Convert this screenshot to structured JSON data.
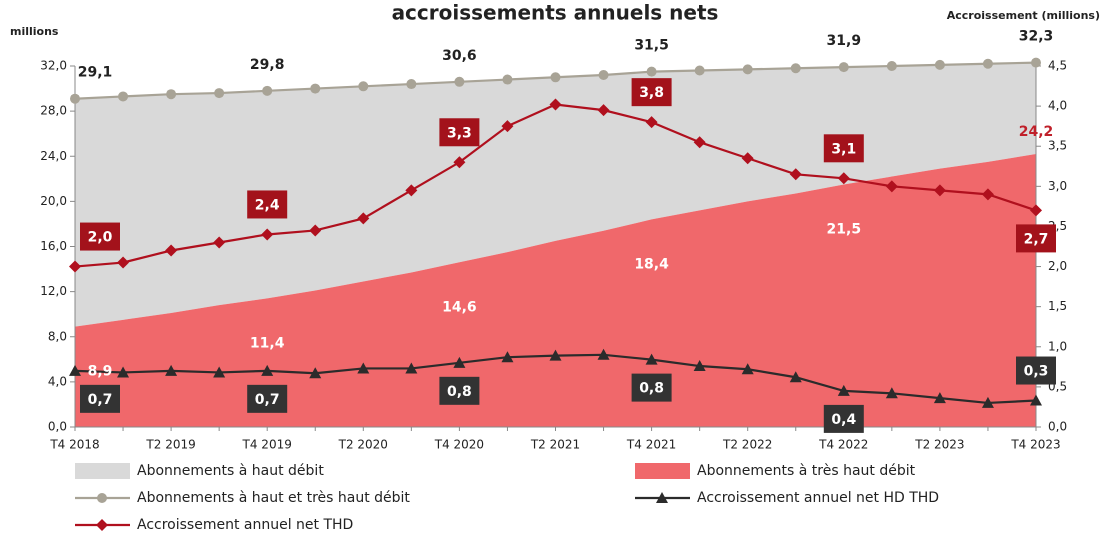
{
  "chart_data": {
    "type": "area-line",
    "title": "accroissements annuels nets",
    "y_label": "millions",
    "y2_label": "Accroissement (millions)",
    "categories": [
      "T4 2018",
      null,
      "T2 2019",
      null,
      "T4 2019",
      null,
      "T2 2020",
      null,
      "T4 2020",
      null,
      "T2 2021",
      null,
      "T4 2021",
      null,
      "T2 2022",
      null,
      "T4 2022",
      null,
      "T2 2023",
      null,
      "T4 2023"
    ],
    "ylim": [
      0,
      32
    ],
    "yticks": [
      {
        "value": 0,
        "label": "0,0"
      },
      {
        "value": 4,
        "label": "4,0"
      },
      {
        "value": 8,
        "label": "8,0"
      },
      {
        "value": 12,
        "label": "12,0"
      },
      {
        "value": 16,
        "label": "16,0"
      },
      {
        "value": 20,
        "label": "20,0"
      },
      {
        "value": 24,
        "label": "24,0"
      },
      {
        "value": 28,
        "label": "28,0"
      },
      {
        "value": 32,
        "label": "32,0"
      }
    ],
    "y2lim": [
      0,
      4.5
    ],
    "y2ticks": [
      {
        "value": 0,
        "label": "0,0"
      },
      {
        "value": 0.5,
        "label": "0,5"
      },
      {
        "value": 1,
        "label": "1,0"
      },
      {
        "value": 1.5,
        "label": "1,5"
      },
      {
        "value": 2,
        "label": "2,0"
      },
      {
        "value": 2.5,
        "label": "2,5"
      },
      {
        "value": 3,
        "label": "3,0"
      },
      {
        "value": 3.5,
        "label": "3,5"
      },
      {
        "value": 4,
        "label": "4,0"
      },
      {
        "value": 4.5,
        "label": "4,5"
      }
    ],
    "series": [
      {
        "name": "Abonnements à très haut débit",
        "kind": "area",
        "stacked": true,
        "color": "#f0686b",
        "values": [
          8.9,
          9.5,
          10.1,
          10.8,
          11.4,
          12.1,
          12.9,
          13.7,
          14.6,
          15.5,
          16.5,
          17.4,
          18.4,
          19.2,
          20.0,
          20.7,
          21.5,
          22.2,
          22.9,
          23.5,
          24.2
        ],
        "value_labels": [
          "8,9",
          null,
          null,
          null,
          "11,4",
          null,
          null,
          null,
          "14,6",
          null,
          null,
          null,
          "18,4",
          null,
          null,
          null,
          "21,5",
          null,
          null,
          null,
          "24,2"
        ]
      },
      {
        "name": "Abonnements à haut débit",
        "kind": "area",
        "stacked": true,
        "color": "#d9d9d9",
        "values": [
          20.2,
          19.8,
          19.4,
          18.8,
          18.4,
          17.9,
          17.3,
          16.7,
          16.0,
          15.3,
          14.5,
          13.8,
          13.1,
          12.4,
          11.7,
          11.1,
          10.4,
          9.8,
          9.2,
          8.7,
          8.1
        ]
      },
      {
        "name": "Abonnements à haut et très haut débit",
        "kind": "line",
        "marker": "circle",
        "color": "#a8a396",
        "values": [
          29.1,
          29.3,
          29.5,
          29.6,
          29.8,
          30.0,
          30.2,
          30.4,
          30.6,
          30.8,
          31.0,
          31.2,
          31.5,
          31.6,
          31.7,
          31.8,
          31.9,
          32.0,
          32.1,
          32.2,
          32.3
        ],
        "value_labels": [
          "29,1",
          null,
          null,
          null,
          "29,8",
          null,
          null,
          null,
          "30,6",
          null,
          null,
          null,
          "31,5",
          null,
          null,
          null,
          "31,9",
          null,
          null,
          null,
          "32,3"
        ]
      },
      {
        "name": "Accroissement annuel net HD THD",
        "kind": "line",
        "marker": "triangle",
        "axis": "y2",
        "color": "#2b2b2b",
        "values": [
          0.7,
          0.68,
          0.7,
          0.68,
          0.7,
          0.67,
          0.73,
          0.73,
          0.8,
          0.87,
          0.89,
          0.9,
          0.84,
          0.76,
          0.72,
          0.62,
          0.45,
          0.42,
          0.36,
          0.3,
          0.33
        ],
        "value_labels": [
          "0,7",
          null,
          null,
          null,
          "0,7",
          null,
          null,
          null,
          "0,8",
          null,
          null,
          null,
          "0,8",
          null,
          null,
          null,
          "0,4",
          null,
          null,
          null,
          "0,3"
        ]
      },
      {
        "name": "Accroissement annuel net THD",
        "kind": "line",
        "marker": "diamond",
        "axis": "y2",
        "color": "#b0101e",
        "values": [
          2.0,
          2.05,
          2.2,
          2.3,
          2.4,
          2.45,
          2.6,
          2.95,
          3.3,
          3.75,
          4.02,
          3.95,
          3.8,
          3.55,
          3.35,
          3.15,
          3.1,
          3.0,
          2.95,
          2.9,
          2.7
        ],
        "value_labels": [
          "2,0",
          null,
          null,
          null,
          "2,4",
          null,
          null,
          null,
          "3,3",
          null,
          null,
          null,
          "3,8",
          null,
          null,
          null,
          "3,1",
          null,
          null,
          null,
          "2,7"
        ]
      }
    ]
  }
}
